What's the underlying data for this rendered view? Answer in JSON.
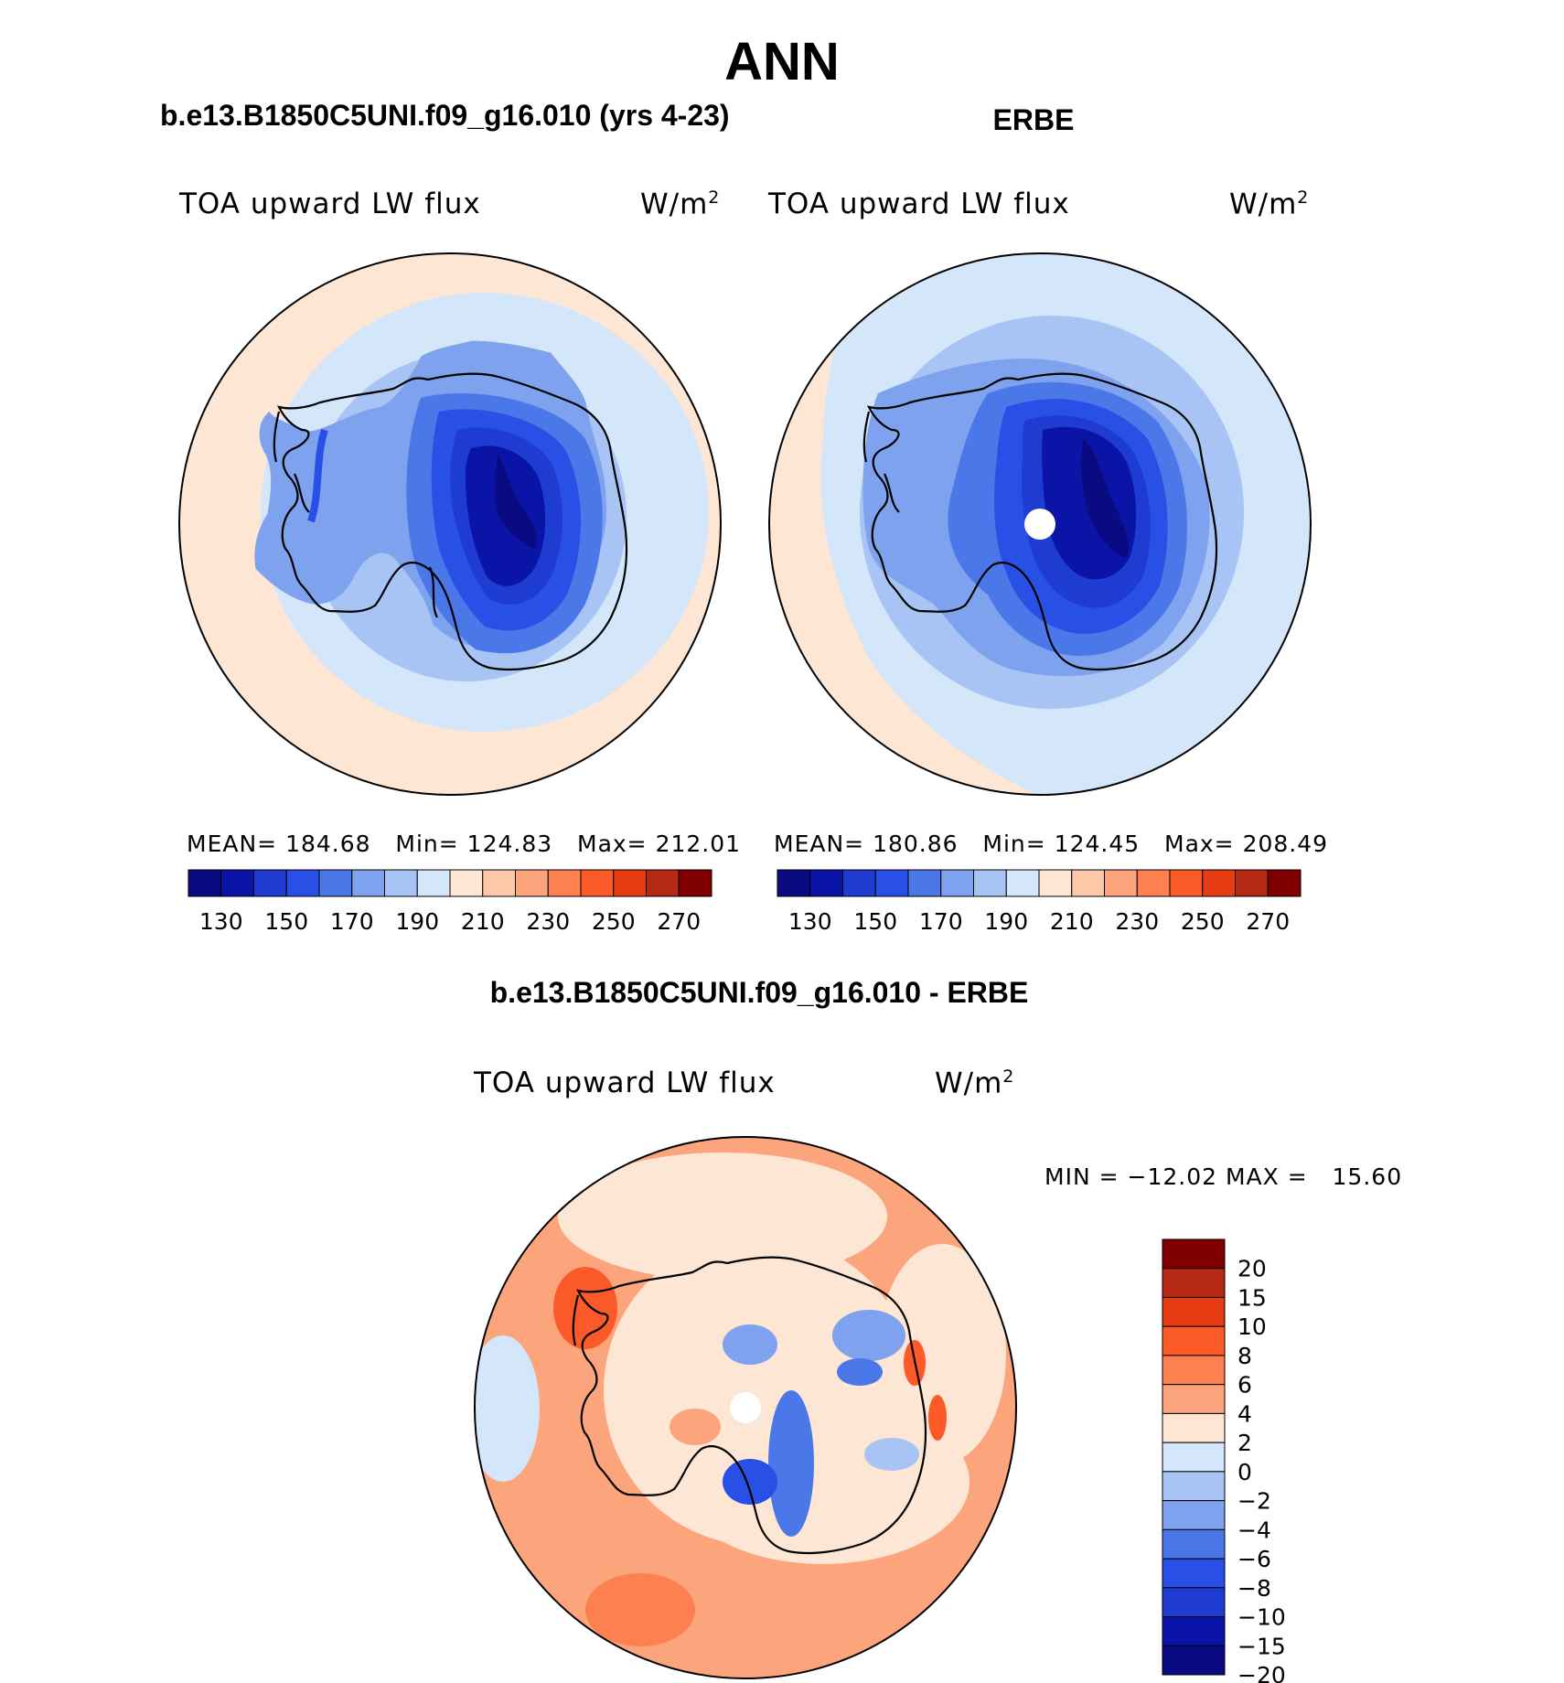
{
  "title": "ANN",
  "panels": [
    {
      "id": "model",
      "header": "b.e13.B1850C5UNI.f09_g16.010 (yrs 4-23)",
      "variable": "TOA upward LW flux",
      "units": "W/m",
      "units_superscript": "2",
      "stats": {
        "mean_label": "MEAN=",
        "mean": "184.68",
        "min_label": "Min=",
        "min": "124.83",
        "max_label": "Max=",
        "max": "212.01"
      }
    },
    {
      "id": "obs",
      "header": "ERBE",
      "variable": "TOA upward LW flux",
      "units": "W/m",
      "units_superscript": "2",
      "stats": {
        "mean_label": "MEAN=",
        "mean": "180.86",
        "min_label": "Min=",
        "min": "124.45",
        "max_label": "Max=",
        "max": "208.49"
      }
    }
  ],
  "diff_panel": {
    "header": "b.e13.B1850C5UNI.f09_g16.010 - ERBE",
    "variable": "TOA upward LW flux",
    "units": "W/m",
    "units_superscript": "2",
    "min_label": "MIN =",
    "min": "−12.02",
    "max_label": "MAX =",
    "max": "15.60"
  },
  "colorbar_main": {
    "colors": [
      "#0a0a82",
      "#0a14a6",
      "#1e3cd2",
      "#2850e6",
      "#4a78e8",
      "#7ea2ee",
      "#a8c4f4",
      "#d4e6fa",
      "#fde6d4",
      "#fcc8a8",
      "#fca47c",
      "#fc8050",
      "#fc5a28",
      "#e63c14",
      "#b42814",
      "#800000"
    ],
    "labels": [
      "130",
      "150",
      "170",
      "190",
      "210",
      "230",
      "250",
      "270"
    ]
  },
  "colorbar_diff": {
    "colors": [
      "#800000",
      "#b42814",
      "#e63c14",
      "#fc5a28",
      "#fc8050",
      "#fca47c",
      "#fde6d4",
      "#d4e6fa",
      "#a8c4f4",
      "#7ea2ee",
      "#4a78e8",
      "#2850e6",
      "#1e3cd2",
      "#0a14a6",
      "#0a0a82"
    ],
    "labels": [
      "20",
      "15",
      "10",
      "8",
      "6",
      "4",
      "2",
      "0",
      "−2",
      "−4",
      "−6",
      "−8",
      "−10",
      "−15",
      "−20"
    ]
  }
}
